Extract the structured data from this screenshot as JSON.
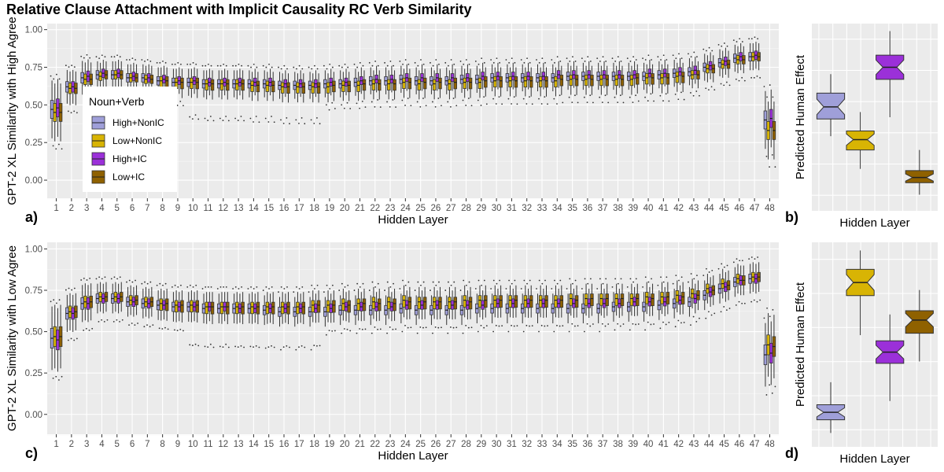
{
  "title": "Relative Clause Attachment with Implicit Causality RC Verb Similarity",
  "legend": {
    "title": "Noun+Verb",
    "placement": "inside top-left of panel a",
    "entries": [
      {
        "label": "High+NonIC",
        "color": "#9f9fd9"
      },
      {
        "label": "Low+NonIC",
        "color": "#d8b404"
      },
      {
        "label": "High+IC",
        "color": "#9b30d9"
      },
      {
        "label": "Low+IC",
        "color": "#8f6100"
      }
    ]
  },
  "chart_data": [
    {
      "panel": "a)",
      "type": "boxplot",
      "xlabel": "Hidden Layer",
      "ylabel": "GPT-2 XL Similarity with High Agree",
      "ylim": [
        -0.12,
        1.04
      ],
      "yticks": [
        "0.00",
        "0.25",
        "0.50",
        "0.75",
        "1.00"
      ],
      "categories": [
        "1",
        "2",
        "3",
        "4",
        "5",
        "6",
        "7",
        "8",
        "9",
        "10",
        "11",
        "12",
        "13",
        "14",
        "15",
        "16",
        "17",
        "18",
        "19",
        "20",
        "21",
        "22",
        "23",
        "24",
        "25",
        "26",
        "27",
        "28",
        "29",
        "30",
        "31",
        "32",
        "33",
        "34",
        "35",
        "36",
        "37",
        "38",
        "39",
        "40",
        "41",
        "42",
        "43",
        "44",
        "45",
        "46",
        "47",
        "48"
      ],
      "series": [
        {
          "name": "High+NonIC",
          "median": [
            0.47,
            0.62,
            0.68,
            0.7,
            0.7,
            0.68,
            0.68,
            0.66,
            0.65,
            0.65,
            0.64,
            0.64,
            0.64,
            0.64,
            0.64,
            0.63,
            0.63,
            0.63,
            0.64,
            0.64,
            0.65,
            0.66,
            0.66,
            0.67,
            0.66,
            0.66,
            0.66,
            0.67,
            0.67,
            0.68,
            0.68,
            0.68,
            0.68,
            0.68,
            0.69,
            0.69,
            0.69,
            0.69,
            0.69,
            0.69,
            0.7,
            0.71,
            0.72,
            0.75,
            0.78,
            0.81,
            0.82,
            0.4
          ]
        },
        {
          "name": "Low+NonIC",
          "median": [
            0.45,
            0.61,
            0.67,
            0.69,
            0.7,
            0.68,
            0.67,
            0.66,
            0.65,
            0.65,
            0.64,
            0.64,
            0.64,
            0.63,
            0.63,
            0.62,
            0.62,
            0.62,
            0.62,
            0.63,
            0.63,
            0.64,
            0.64,
            0.65,
            0.64,
            0.64,
            0.64,
            0.65,
            0.65,
            0.66,
            0.66,
            0.66,
            0.66,
            0.66,
            0.67,
            0.67,
            0.67,
            0.67,
            0.67,
            0.68,
            0.68,
            0.69,
            0.7,
            0.74,
            0.77,
            0.8,
            0.82,
            0.33
          ]
        },
        {
          "name": "High+IC",
          "median": [
            0.48,
            0.62,
            0.69,
            0.71,
            0.71,
            0.69,
            0.68,
            0.67,
            0.66,
            0.66,
            0.65,
            0.65,
            0.65,
            0.65,
            0.65,
            0.64,
            0.64,
            0.64,
            0.65,
            0.65,
            0.66,
            0.67,
            0.67,
            0.68,
            0.68,
            0.68,
            0.68,
            0.68,
            0.69,
            0.69,
            0.69,
            0.69,
            0.69,
            0.7,
            0.7,
            0.7,
            0.7,
            0.7,
            0.7,
            0.71,
            0.71,
            0.72,
            0.73,
            0.76,
            0.79,
            0.82,
            0.83,
            0.41
          ]
        },
        {
          "name": "Low+IC",
          "median": [
            0.45,
            0.61,
            0.67,
            0.7,
            0.7,
            0.68,
            0.67,
            0.66,
            0.65,
            0.65,
            0.64,
            0.64,
            0.64,
            0.63,
            0.63,
            0.62,
            0.62,
            0.62,
            0.63,
            0.63,
            0.64,
            0.64,
            0.64,
            0.65,
            0.65,
            0.65,
            0.65,
            0.65,
            0.66,
            0.66,
            0.66,
            0.66,
            0.66,
            0.67,
            0.67,
            0.67,
            0.67,
            0.67,
            0.68,
            0.68,
            0.68,
            0.69,
            0.7,
            0.74,
            0.77,
            0.8,
            0.82,
            0.33
          ]
        }
      ]
    },
    {
      "panel": "b)",
      "type": "boxplot",
      "xlabel": "Hidden Layer",
      "ylabel": "Predicted Human Effect",
      "categories": [
        "High+NonIC",
        "Low+NonIC",
        "High+IC",
        "Low+IC"
      ],
      "ylim": [
        0,
        1
      ],
      "boxes": [
        {
          "name": "High+NonIC",
          "whisker_low": 0.39,
          "q1": 0.49,
          "median": 0.56,
          "q3": 0.64,
          "whisker_high": 0.75
        },
        {
          "name": "Low+NonIC",
          "whisker_low": 0.2,
          "q1": 0.31,
          "median": 0.37,
          "q3": 0.42,
          "whisker_high": 0.53
        },
        {
          "name": "High+IC",
          "whisker_low": 0.5,
          "q1": 0.72,
          "median": 0.79,
          "q3": 0.86,
          "whisker_high": 1.0
        },
        {
          "name": "Low+IC",
          "whisker_low": 0.05,
          "q1": 0.12,
          "median": 0.15,
          "q3": 0.19,
          "whisker_high": 0.31
        }
      ]
    },
    {
      "panel": "c)",
      "type": "boxplot",
      "xlabel": "Hidden Layer",
      "ylabel": "GPT-2 XL Similarity with Low Agree",
      "ylim": [
        -0.12,
        1.04
      ],
      "yticks": [
        "0.00",
        "0.25",
        "0.50",
        "0.75",
        "1.00"
      ],
      "categories": [
        "1",
        "2",
        "3",
        "4",
        "5",
        "6",
        "7",
        "8",
        "9",
        "10",
        "11",
        "12",
        "13",
        "14",
        "15",
        "16",
        "17",
        "18",
        "19",
        "20",
        "21",
        "22",
        "23",
        "24",
        "25",
        "26",
        "27",
        "28",
        "29",
        "30",
        "31",
        "32",
        "33",
        "34",
        "35",
        "36",
        "37",
        "38",
        "39",
        "40",
        "41",
        "42",
        "43",
        "44",
        "45",
        "46",
        "47",
        "48"
      ],
      "series": [
        {
          "name": "High+NonIC",
          "median": [
            0.46,
            0.61,
            0.67,
            0.7,
            0.7,
            0.68,
            0.67,
            0.66,
            0.65,
            0.65,
            0.64,
            0.64,
            0.64,
            0.64,
            0.63,
            0.62,
            0.62,
            0.62,
            0.62,
            0.63,
            0.63,
            0.63,
            0.63,
            0.64,
            0.63,
            0.63,
            0.63,
            0.63,
            0.64,
            0.64,
            0.64,
            0.64,
            0.64,
            0.64,
            0.64,
            0.64,
            0.64,
            0.65,
            0.65,
            0.65,
            0.66,
            0.67,
            0.68,
            0.72,
            0.76,
            0.8,
            0.82,
            0.36
          ]
        },
        {
          "name": "Low+NonIC",
          "median": [
            0.47,
            0.62,
            0.68,
            0.71,
            0.71,
            0.69,
            0.68,
            0.67,
            0.66,
            0.66,
            0.65,
            0.65,
            0.65,
            0.65,
            0.65,
            0.65,
            0.65,
            0.66,
            0.66,
            0.67,
            0.67,
            0.68,
            0.68,
            0.69,
            0.68,
            0.68,
            0.68,
            0.69,
            0.69,
            0.69,
            0.69,
            0.69,
            0.69,
            0.69,
            0.7,
            0.7,
            0.7,
            0.7,
            0.7,
            0.71,
            0.71,
            0.72,
            0.73,
            0.76,
            0.79,
            0.82,
            0.83,
            0.42
          ]
        },
        {
          "name": "High+IC",
          "median": [
            0.45,
            0.61,
            0.67,
            0.7,
            0.7,
            0.68,
            0.67,
            0.66,
            0.65,
            0.65,
            0.65,
            0.65,
            0.64,
            0.64,
            0.64,
            0.64,
            0.64,
            0.64,
            0.64,
            0.65,
            0.65,
            0.65,
            0.65,
            0.66,
            0.66,
            0.66,
            0.66,
            0.66,
            0.66,
            0.67,
            0.67,
            0.67,
            0.67,
            0.67,
            0.67,
            0.67,
            0.67,
            0.67,
            0.68,
            0.68,
            0.68,
            0.69,
            0.7,
            0.74,
            0.77,
            0.81,
            0.82,
            0.37
          ]
        },
        {
          "name": "Low+IC",
          "median": [
            0.47,
            0.62,
            0.68,
            0.71,
            0.71,
            0.69,
            0.68,
            0.67,
            0.66,
            0.66,
            0.65,
            0.65,
            0.65,
            0.65,
            0.65,
            0.65,
            0.65,
            0.66,
            0.66,
            0.66,
            0.67,
            0.67,
            0.67,
            0.68,
            0.68,
            0.68,
            0.68,
            0.68,
            0.69,
            0.69,
            0.69,
            0.69,
            0.69,
            0.69,
            0.69,
            0.7,
            0.7,
            0.7,
            0.7,
            0.7,
            0.71,
            0.71,
            0.72,
            0.75,
            0.78,
            0.81,
            0.83,
            0.41
          ]
        }
      ]
    },
    {
      "panel": "d)",
      "type": "boxplot",
      "xlabel": "Hidden Layer",
      "ylabel": "Predicted Human Effect",
      "categories": [
        "High+NonIC",
        "Low+NonIC",
        "High+IC",
        "Low+IC"
      ],
      "ylim": [
        0,
        1
      ],
      "boxes": [
        {
          "name": "High+NonIC",
          "whisker_low": 0.03,
          "q1": 0.1,
          "median": 0.14,
          "q3": 0.18,
          "whisker_high": 0.3
        },
        {
          "name": "Low+NonIC",
          "whisker_low": 0.55,
          "q1": 0.76,
          "median": 0.83,
          "q3": 0.9,
          "whisker_high": 1.0
        },
        {
          "name": "High+IC",
          "whisker_low": 0.2,
          "q1": 0.4,
          "median": 0.46,
          "q3": 0.52,
          "whisker_high": 0.66
        },
        {
          "name": "Low+IC",
          "whisker_low": 0.41,
          "q1": 0.56,
          "median": 0.63,
          "q3": 0.68,
          "whisker_high": 0.79
        }
      ]
    }
  ]
}
